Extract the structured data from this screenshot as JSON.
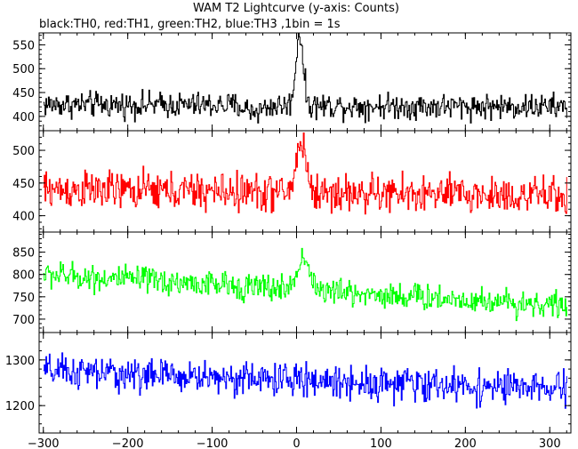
{
  "chart_data": {
    "type": "line",
    "title": "WAM T2 Lightcurve (y-axis: Counts)",
    "subtitle": "black:TH0, red:TH1, green:TH2, blue:TH3 ,1bin = 1s",
    "x_range": [
      -305,
      325
    ],
    "x_ticks": [
      -300,
      -200,
      -100,
      0,
      100,
      200,
      300
    ],
    "x_tick_labels": [
      "−300",
      "−200",
      "−100",
      "0",
      "100",
      "200",
      "300"
    ],
    "grid": false,
    "panels": [
      {
        "series_name": "TH0",
        "color": "#000000",
        "y_range": [
          370,
          575
        ],
        "y_ticks": [
          400,
          450,
          500,
          550
        ],
        "baseline_start": 425,
        "baseline_end": 420,
        "noise_amplitude": 22,
        "features": [
          {
            "x_center": 3,
            "peak": 575,
            "width": 6
          },
          {
            "x_center": -50,
            "dip": 390,
            "width": 15
          }
        ]
      },
      {
        "series_name": "TH1",
        "color": "#ff0000",
        "y_range": [
          375,
          530
        ],
        "y_ticks": [
          400,
          450,
          500
        ],
        "baseline_start": 440,
        "baseline_end": 430,
        "noise_amplitude": 24,
        "features": [
          {
            "x_center": 5,
            "peak": 515,
            "width": 8
          }
        ]
      },
      {
        "series_name": "TH2",
        "color": "#00ff00",
        "y_range": [
          670,
          895
        ],
        "y_ticks": [
          700,
          750,
          800,
          850
        ],
        "baseline_start": 800,
        "baseline_end": 730,
        "noise_amplitude": 25,
        "features": [
          {
            "x_center": 8,
            "peak": 840,
            "width": 10
          }
        ]
      },
      {
        "series_name": "TH3",
        "color": "#0000ff",
        "y_range": [
          1140,
          1360
        ],
        "y_ticks": [
          1200,
          1300
        ],
        "baseline_start": 1275,
        "baseline_end": 1235,
        "noise_amplitude": 30,
        "features": []
      }
    ]
  }
}
